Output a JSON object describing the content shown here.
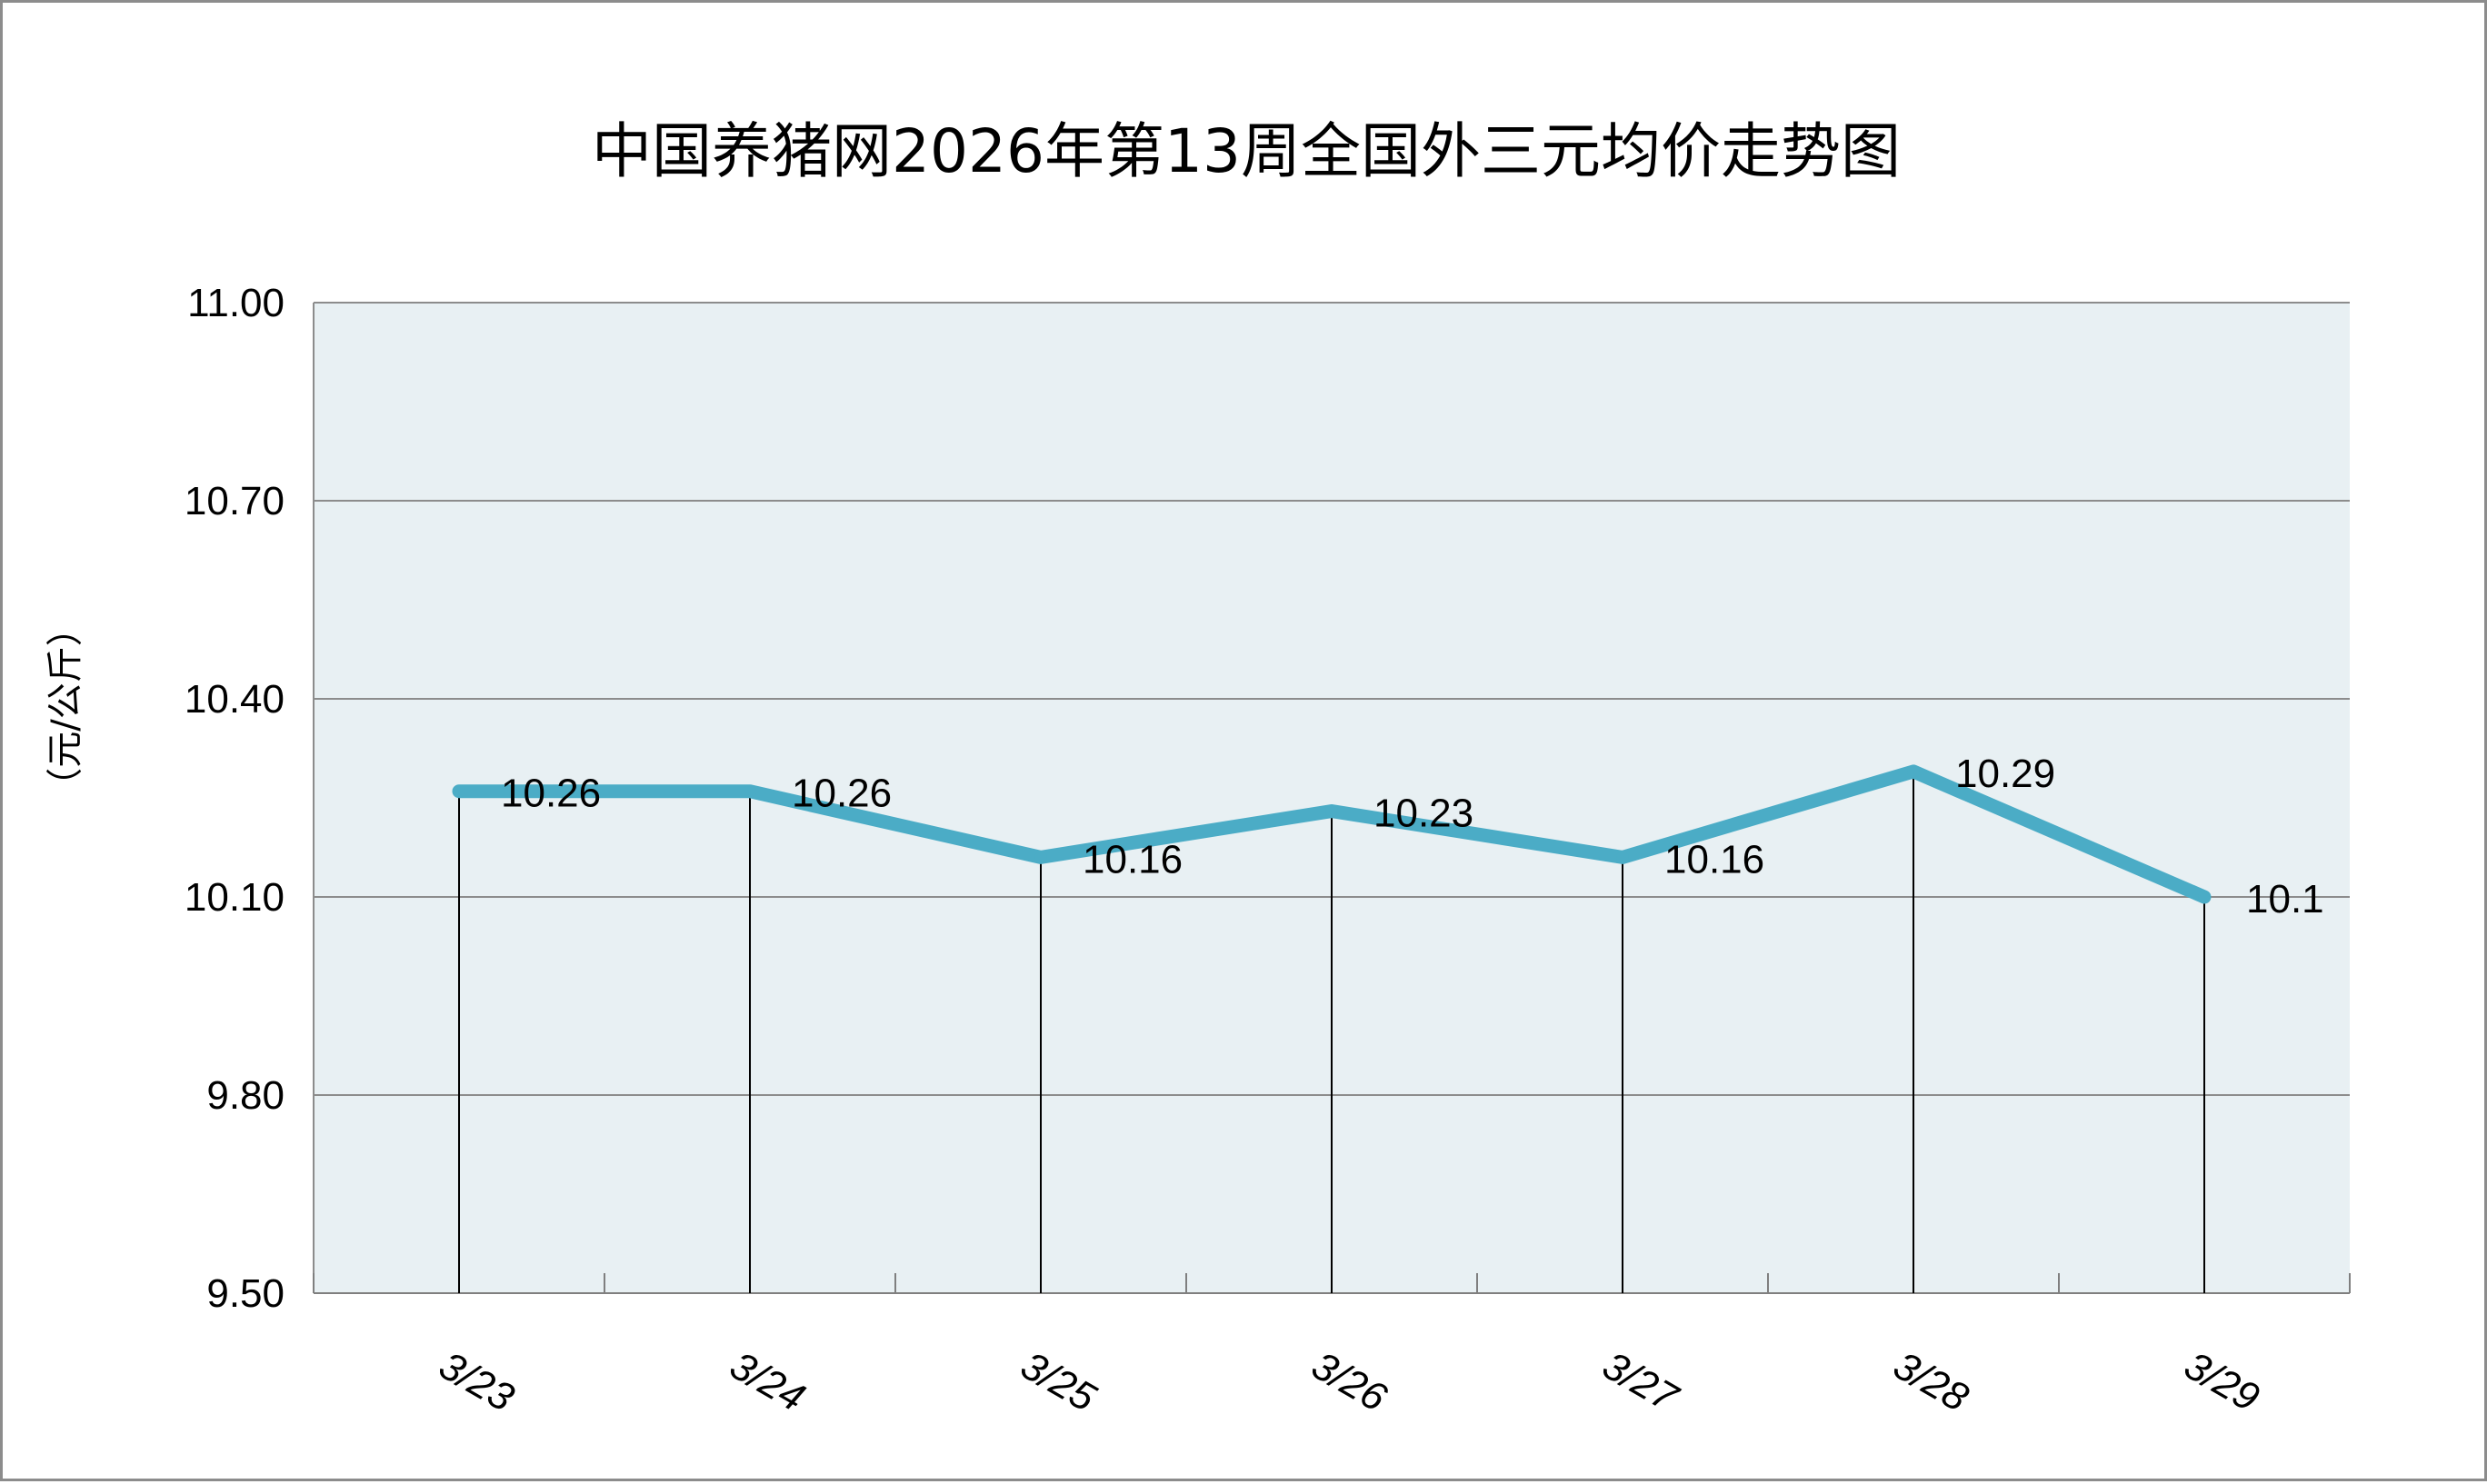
{
  "chart_data": {
    "type": "line",
    "title": "中国养猪网2026年第13周全国外三元均价走势图",
    "xlabel": "",
    "ylabel": "（元/公斤）",
    "categories": [
      "3/23",
      "3/24",
      "3/25",
      "3/26",
      "3/27",
      "3/28",
      "3/29"
    ],
    "series": [
      {
        "name": "",
        "values": [
          10.26,
          10.26,
          10.16,
          10.23,
          10.16,
          10.29,
          10.1
        ],
        "labels": [
          "10.26",
          "10.26",
          "10.16",
          "10.23",
          "10.16",
          "10.29",
          "10.1"
        ],
        "color": "#4bacc6"
      }
    ],
    "ylim": [
      9.5,
      11.0
    ],
    "yticks": [
      "9.50",
      "9.80",
      "10.10",
      "10.40",
      "10.70",
      "11.00"
    ],
    "grid": true,
    "legend": "none",
    "plot_background": "#e8f0f3",
    "gridline_color": "#8c8c8c"
  }
}
